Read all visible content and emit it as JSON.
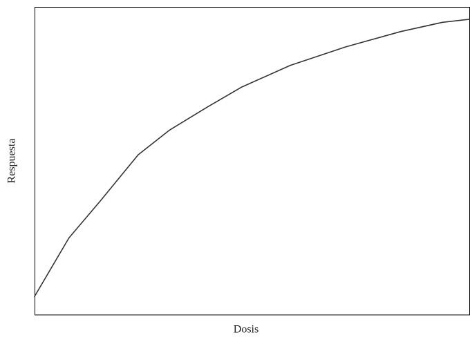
{
  "chart_data": {
    "type": "line",
    "x_label": "Dosis",
    "y_label": "Respuesta",
    "x": [
      0,
      0.79,
      1.51,
      2.38,
      3.1,
      3.97,
      4.76,
      5.87,
      7.14,
      8.41,
      9.37,
      10
    ],
    "series": [
      {
        "color": "#333333",
        "values": [
          6,
          25,
          37,
          52,
          60,
          67.5,
          74,
          81,
          87,
          92,
          95,
          96
        ]
      }
    ],
    "xlim": [
      0,
      10
    ],
    "ylim": [
      0,
      100
    ],
    "grid": false
  }
}
